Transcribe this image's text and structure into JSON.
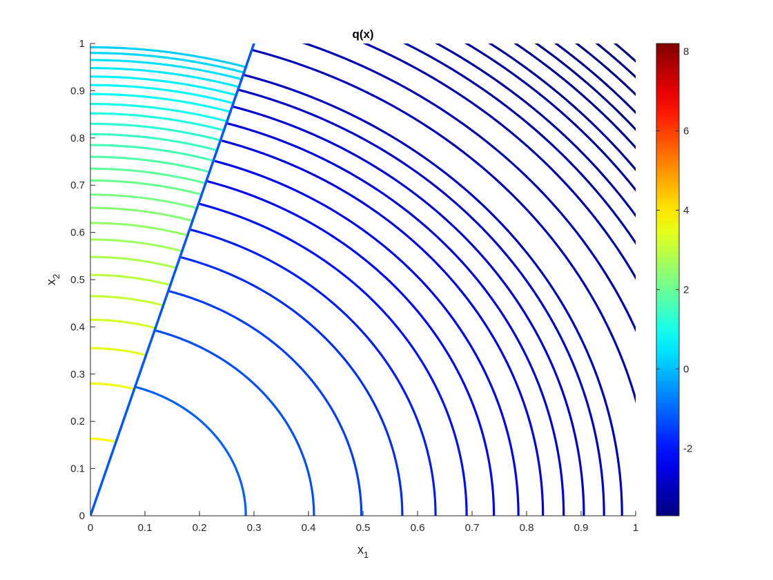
{
  "chart_data": {
    "type": "line",
    "subtype": "contour",
    "title": "q(x)",
    "xlabel": "x",
    "xlabel_sub": "1",
    "ylabel": "x",
    "ylabel_sub": "2",
    "xlim": [
      0,
      1
    ],
    "ylim": [
      0,
      1
    ],
    "x_ticks": [
      "0",
      "0.1",
      "0.2",
      "0.3",
      "0.4",
      "0.5",
      "0.6",
      "0.7",
      "0.8",
      "0.9",
      "1"
    ],
    "y_ticks": [
      "0",
      "0.1",
      "0.2",
      "0.3",
      "0.4",
      "0.5",
      "0.6",
      "0.7",
      "0.8",
      "0.9",
      "1"
    ],
    "grid": false,
    "colormap": "jet",
    "colorbar": {
      "range": [
        -3.7,
        8.2
      ],
      "ticks": [
        "-2",
        "0",
        "2",
        "4",
        "6",
        "8"
      ],
      "tick_values": [
        -2,
        0,
        2,
        4,
        6,
        8
      ]
    },
    "discontinuity_line": {
      "slope": 3.32,
      "from": [
        0,
        0
      ],
      "to": [
        0.3,
        1.0
      ],
      "value": -1.2
    },
    "right_region_radii": [
      0.285,
      0.41,
      0.497,
      0.572,
      0.633,
      0.69,
      0.74,
      0.785,
      0.83,
      0.868,
      0.905,
      0.942,
      0.975,
      1.03,
      1.075,
      1.12,
      1.155,
      1.185,
      1.215,
      1.24,
      1.268,
      1.292,
      1.315,
      1.34,
      1.365,
      1.388
    ],
    "right_region_values": [
      -1.1,
      -1.3,
      -1.5,
      -1.7,
      -1.9,
      -2.05,
      -2.2,
      -2.35,
      -2.5,
      -2.62,
      -2.74,
      -2.85,
      -2.96,
      -3.05,
      -3.13,
      -3.2,
      -3.27,
      -3.33,
      -3.38,
      -3.43,
      -3.48,
      -3.52,
      -3.56,
      -3.6,
      -3.63,
      -3.66
    ],
    "left_region_radii": [
      0.163,
      0.28,
      0.355,
      0.415,
      0.465,
      0.51,
      0.548,
      0.585,
      0.62,
      0.652,
      0.68,
      0.71,
      0.735,
      0.76,
      0.785,
      0.808,
      0.83,
      0.852,
      0.872,
      0.893,
      0.912,
      0.93,
      0.948,
      0.965,
      0.98,
      0.992
    ],
    "left_region_values": [
      3.7,
      3.55,
      3.4,
      3.25,
      3.1,
      2.95,
      2.8,
      2.65,
      2.5,
      2.35,
      2.2,
      2.05,
      1.9,
      1.75,
      1.6,
      1.45,
      1.3,
      1.15,
      1.0,
      0.85,
      0.7,
      0.6,
      0.5,
      0.4,
      0.3,
      0.2
    ]
  }
}
